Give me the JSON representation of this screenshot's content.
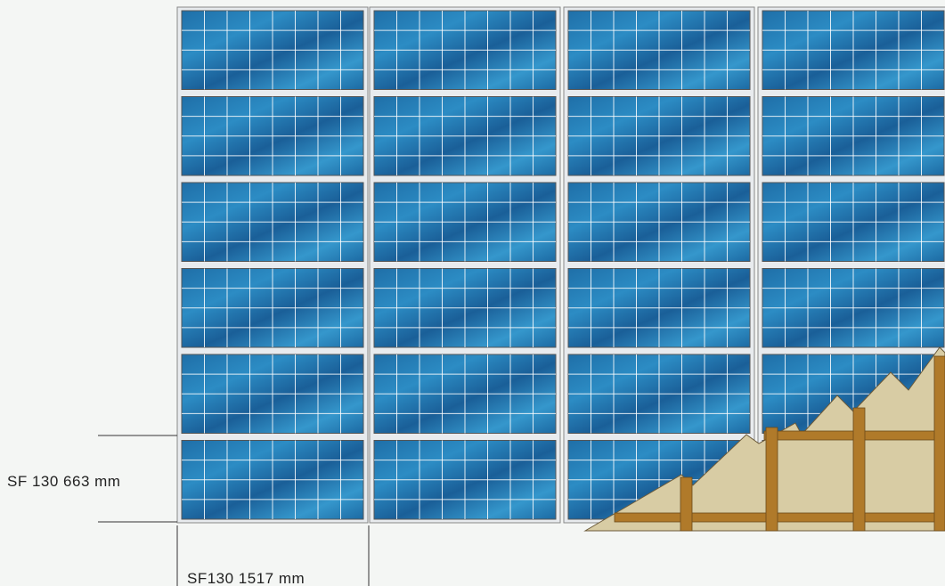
{
  "dimensions": {
    "height_label": "SF 130 663 mm",
    "width_label": "SF130 1517 mm"
  }
}
